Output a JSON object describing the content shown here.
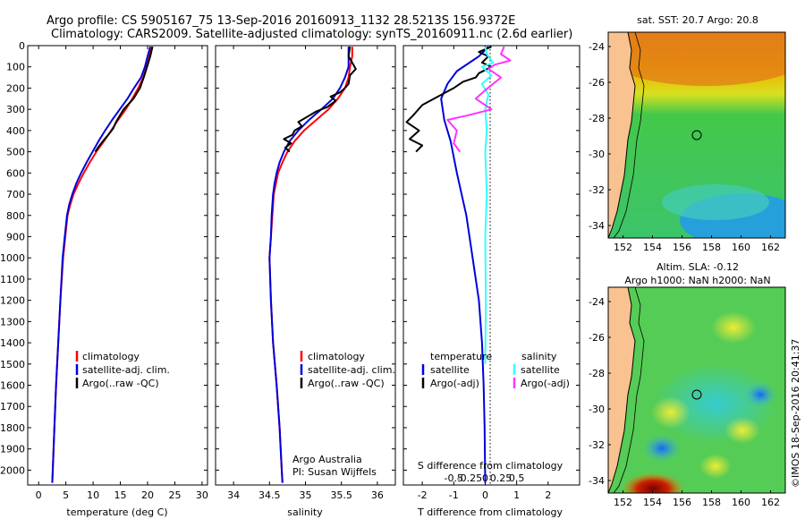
{
  "header": {
    "line1": "Argo profile: CS 5905167_75 13-Sep-2016 20160913_1132 28.5213S 156.9372E",
    "line2": "Climatology: CARS2009. Satellite-adjusted climatology: synTS_20160911.nc (2.6d earlier)"
  },
  "colors": {
    "clim": "#ff0000",
    "sat": "#0000dd",
    "argo": "#000000",
    "sal_sat": "#33ffff",
    "sal_argo": "#ff33ff",
    "land": "#f8c391"
  },
  "chart_data": [
    {
      "type": "line",
      "id": "temperature",
      "xlabel": "temperature (deg C)",
      "xlim": [
        -2,
        31
      ],
      "ylim": [
        2070,
        0
      ],
      "xticks": [
        "0",
        "5",
        "10",
        "15",
        "20",
        "25",
        "30"
      ],
      "yticks": [
        "0",
        "100",
        "200",
        "300",
        "400",
        "500",
        "600",
        "700",
        "800",
        "900",
        "1000",
        "1100",
        "1200",
        "1300",
        "1400",
        "1500",
        "1600",
        "1700",
        "1800",
        "1900",
        "2000"
      ],
      "legend": [
        "climatology",
        "satellite-adj. clim.",
        "Argo(..raw -QC)"
      ],
      "series": [
        {
          "name": "climatology",
          "color": "clim",
          "points": [
            [
              20.8,
              5
            ],
            [
              20.3,
              50
            ],
            [
              19.8,
              100
            ],
            [
              19.2,
              150
            ],
            [
              18.3,
              200
            ],
            [
              17.2,
              250
            ],
            [
              16.0,
              300
            ],
            [
              14.6,
              350
            ],
            [
              13.3,
              400
            ],
            [
              12.0,
              450
            ],
            [
              10.6,
              500
            ],
            [
              9.4,
              550
            ],
            [
              8.3,
              600
            ],
            [
              7.3,
              650
            ],
            [
              6.4,
              700
            ],
            [
              5.8,
              750
            ],
            [
              5.3,
              800
            ],
            [
              4.9,
              900
            ],
            [
              4.5,
              1000
            ],
            [
              4.0,
              1200
            ],
            [
              3.6,
              1400
            ],
            [
              3.2,
              1600
            ],
            [
              2.9,
              1800
            ],
            [
              2.6,
              2000
            ],
            [
              2.5,
              2060
            ]
          ]
        },
        {
          "name": "satellite-adj. clim.",
          "color": "sat",
          "points": [
            [
              20.5,
              5
            ],
            [
              20.0,
              50
            ],
            [
              19.5,
              100
            ],
            [
              18.8,
              150
            ],
            [
              17.5,
              200
            ],
            [
              16.3,
              250
            ],
            [
              14.9,
              300
            ],
            [
              13.5,
              350
            ],
            [
              12.2,
              400
            ],
            [
              11.0,
              450
            ],
            [
              9.9,
              500
            ],
            [
              8.8,
              550
            ],
            [
              7.8,
              600
            ],
            [
              6.9,
              650
            ],
            [
              6.2,
              700
            ],
            [
              5.6,
              750
            ],
            [
              5.2,
              800
            ],
            [
              4.8,
              900
            ],
            [
              4.4,
              1000
            ],
            [
              4.0,
              1200
            ],
            [
              3.6,
              1400
            ],
            [
              3.2,
              1600
            ],
            [
              2.9,
              1800
            ],
            [
              2.6,
              2000
            ],
            [
              2.5,
              2060
            ]
          ]
        },
        {
          "name": "Argo(..raw -QC)",
          "color": "argo",
          "points": [
            [
              20.9,
              5
            ],
            [
              20.5,
              50
            ],
            [
              19.9,
              100
            ],
            [
              19.3,
              150
            ],
            [
              18.6,
              200
            ],
            [
              17.4,
              250
            ],
            [
              15.6,
              300
            ],
            [
              14.9,
              330
            ],
            [
              14.2,
              360
            ],
            [
              13.7,
              390
            ],
            [
              12.8,
              420
            ],
            [
              11.8,
              450
            ],
            [
              10.9,
              480
            ],
            [
              10.4,
              500
            ]
          ]
        }
      ]
    },
    {
      "type": "line",
      "id": "salinity",
      "xlabel": "salinity",
      "xlim": [
        33.75,
        36.25
      ],
      "ylim": [
        2070,
        0
      ],
      "xticks": [
        "34",
        "34.5",
        "35",
        "35.5",
        "36"
      ],
      "legend": [
        "climatology",
        "satellite-adj. clim.",
        "Argo(..raw -QC)"
      ],
      "series": [
        {
          "name": "climatology",
          "color": "clim",
          "points": [
            [
              35.65,
              5
            ],
            [
              35.65,
              50
            ],
            [
              35.62,
              100
            ],
            [
              35.6,
              150
            ],
            [
              35.55,
              200
            ],
            [
              35.45,
              250
            ],
            [
              35.32,
              300
            ],
            [
              35.15,
              350
            ],
            [
              34.98,
              400
            ],
            [
              34.85,
              450
            ],
            [
              34.75,
              500
            ],
            [
              34.68,
              550
            ],
            [
              34.62,
              600
            ],
            [
              34.59,
              650
            ],
            [
              34.56,
              700
            ],
            [
              34.54,
              800
            ],
            [
              34.52,
              900
            ],
            [
              34.5,
              1000
            ],
            [
              34.52,
              1200
            ],
            [
              34.55,
              1400
            ],
            [
              34.6,
              1600
            ],
            [
              34.64,
              1800
            ],
            [
              34.67,
              2000
            ],
            [
              34.68,
              2060
            ]
          ]
        },
        {
          "name": "satellite-adj. clim.",
          "color": "sat",
          "points": [
            [
              35.6,
              5
            ],
            [
              35.6,
              50
            ],
            [
              35.6,
              100
            ],
            [
              35.55,
              150
            ],
            [
              35.48,
              200
            ],
            [
              35.38,
              250
            ],
            [
              35.22,
              300
            ],
            [
              35.05,
              350
            ],
            [
              34.9,
              400
            ],
            [
              34.78,
              450
            ],
            [
              34.7,
              500
            ],
            [
              34.64,
              550
            ],
            [
              34.6,
              600
            ],
            [
              34.57,
              650
            ],
            [
              34.55,
              700
            ],
            [
              34.53,
              800
            ],
            [
              34.52,
              900
            ],
            [
              34.5,
              1000
            ],
            [
              34.52,
              1200
            ],
            [
              34.55,
              1400
            ],
            [
              34.6,
              1600
            ],
            [
              34.64,
              1800
            ],
            [
              34.67,
              2000
            ],
            [
              34.68,
              2060
            ]
          ]
        },
        {
          "name": "Argo(..raw -QC)",
          "color": "argo",
          "points": [
            [
              35.62,
              5
            ],
            [
              35.6,
              50
            ],
            [
              35.65,
              80
            ],
            [
              35.7,
              110
            ],
            [
              35.62,
              140
            ],
            [
              35.6,
              180
            ],
            [
              35.55,
              200
            ],
            [
              35.48,
              220
            ],
            [
              35.35,
              240
            ],
            [
              35.42,
              260
            ],
            [
              35.3,
              290
            ],
            [
              35.15,
              310
            ],
            [
              35.05,
              330
            ],
            [
              34.9,
              360
            ],
            [
              34.95,
              380
            ],
            [
              34.85,
              400
            ],
            [
              34.82,
              420
            ],
            [
              34.7,
              440
            ],
            [
              34.8,
              460
            ],
            [
              34.72,
              480
            ],
            [
              34.78,
              500
            ]
          ]
        }
      ]
    },
    {
      "type": "line",
      "id": "difference",
      "xlabel": "T difference from climatology",
      "xlabel_top": "S difference from climatology",
      "xlim": [
        -2.6,
        3.0
      ],
      "ylim": [
        2070,
        0
      ],
      "xticks": [
        "-2",
        "-1",
        "0",
        "1",
        "2"
      ],
      "xticks_s": [
        "-0.5",
        "-0.25",
        "0",
        "0.25",
        "0.5"
      ],
      "legend_titles": [
        "temperature",
        "salinity"
      ],
      "legend": [
        "satellite",
        "Argo(-adj)",
        "satellite",
        "Argo(-adj)"
      ],
      "series": [
        {
          "name": "T satellite",
          "color": "sat",
          "points": [
            [
              0.1,
              5
            ],
            [
              -0.2,
              50
            ],
            [
              -0.5,
              80
            ],
            [
              -0.9,
              120
            ],
            [
              -1.2,
              180
            ],
            [
              -1.4,
              250
            ],
            [
              -1.3,
              350
            ],
            [
              -1.1,
              450
            ],
            [
              -0.9,
              600
            ],
            [
              -0.6,
              800
            ],
            [
              -0.4,
              1000
            ],
            [
              -0.2,
              1200
            ],
            [
              -0.1,
              1400
            ],
            [
              -0.05,
              1600
            ],
            [
              -0.02,
              1800
            ],
            [
              0,
              2060
            ]
          ]
        },
        {
          "name": "T Argo(-adj)",
          "color": "argo",
          "points": [
            [
              0.2,
              5
            ],
            [
              -0.2,
              30
            ],
            [
              0.1,
              50
            ],
            [
              -0.1,
              80
            ],
            [
              0.2,
              100
            ],
            [
              -0.2,
              130
            ],
            [
              -0.3,
              150
            ],
            [
              -0.7,
              170
            ],
            [
              -1.0,
              200
            ],
            [
              -1.5,
              240
            ],
            [
              -2.0,
              280
            ],
            [
              -2.3,
              330
            ],
            [
              -2.5,
              360
            ],
            [
              -2.1,
              400
            ],
            [
              -2.4,
              440
            ],
            [
              -2.0,
              470
            ],
            [
              -2.2,
              500
            ]
          ]
        },
        {
          "name": "S satellite",
          "color": "sal_sat",
          "points": [
            [
              0.0,
              5
            ],
            [
              0.05,
              40
            ],
            [
              0.25,
              80
            ],
            [
              -0.1,
              100
            ],
            [
              0.2,
              140
            ],
            [
              -0.1,
              180
            ],
            [
              0.1,
              230
            ],
            [
              0.0,
              300
            ],
            [
              0.05,
              400
            ],
            [
              0.0,
              500
            ],
            [
              0.05,
              700
            ],
            [
              0.0,
              900
            ],
            [
              0.02,
              1200
            ],
            [
              0.0,
              1500
            ]
          ]
        },
        {
          "name": "S Argo(-adj)",
          "color": "sal_argo",
          "points": [
            [
              0.6,
              5
            ],
            [
              0.5,
              40
            ],
            [
              0.8,
              70
            ],
            [
              0.3,
              90
            ],
            [
              0.1,
              110
            ],
            [
              0.5,
              150
            ],
            [
              0.0,
              210
            ],
            [
              -0.3,
              250
            ],
            [
              0.2,
              300
            ],
            [
              -0.6,
              330
            ],
            [
              -1.2,
              350
            ],
            [
              -0.9,
              400
            ],
            [
              -1.0,
              460
            ],
            [
              -0.8,
              500
            ]
          ]
        }
      ]
    },
    {
      "type": "heatmap",
      "id": "sst_map",
      "title": "sat. SST: 20.7  Argo: 20.8",
      "xticks": [
        "152",
        "154",
        "156",
        "158",
        "160",
        "162"
      ],
      "yticks": [
        "-24",
        "-26",
        "-28",
        "-30",
        "-32",
        "-34"
      ]
    },
    {
      "type": "heatmap",
      "id": "sla_map",
      "title_line1": "Altim. SLA: -0.12",
      "title_line2": "Argo h1000: NaN h2000: NaN",
      "xticks": [
        "152",
        "154",
        "156",
        "158",
        "160",
        "162"
      ],
      "yticks": [
        "-24",
        "-26",
        "-28",
        "-30",
        "-32",
        "-34"
      ]
    }
  ],
  "annotations": {
    "credit1": "Argo Australia",
    "credit2": "PI: Susan Wijffels",
    "side_stamp": "©IMOS 18-Sep-2016 20:41:37"
  }
}
